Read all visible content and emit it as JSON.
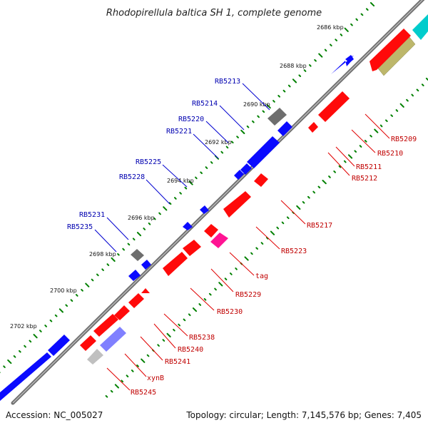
{
  "title": "Rhodopirellula baltica SH 1, complete genome",
  "footer": {
    "accession": "Accession: NC_005027",
    "summary": "Topology: circular; Length: 7,145,576 bp; Genes: 7,405"
  },
  "scale_labels": [
    "2686 kbp",
    "2688 kbp",
    "2690 kbp",
    "2692 kbp",
    "2694 kbp",
    "2696 kbp",
    "2698 kbp",
    "2700 kbp",
    "2702 kbp"
  ],
  "gene_labels_forward": [
    "RB5213",
    "RB5214",
    "RB5220",
    "RB5221",
    "RB5225",
    "RB5228",
    "RB5231",
    "RB5235"
  ],
  "gene_labels_reverse": [
    "RB5209",
    "RB5210",
    "RB5211",
    "RB5212",
    "RB5217",
    "RB5223",
    "tag",
    "RB5229",
    "RB5230",
    "RB5238",
    "RB5240",
    "RB5241",
    "xynB",
    "RB5245"
  ],
  "colors": {
    "forward_gene": "#0a0aff",
    "reverse_gene": "#ff0a0a",
    "unknown_gene": "#808080",
    "trna_gene": "#ff1493",
    "cyan_feature": "#00cccc",
    "olive_feature": "#bdb76b",
    "lavender_feature": "#8080ff",
    "tick_green": "#008000",
    "backbone": "#808080"
  }
}
